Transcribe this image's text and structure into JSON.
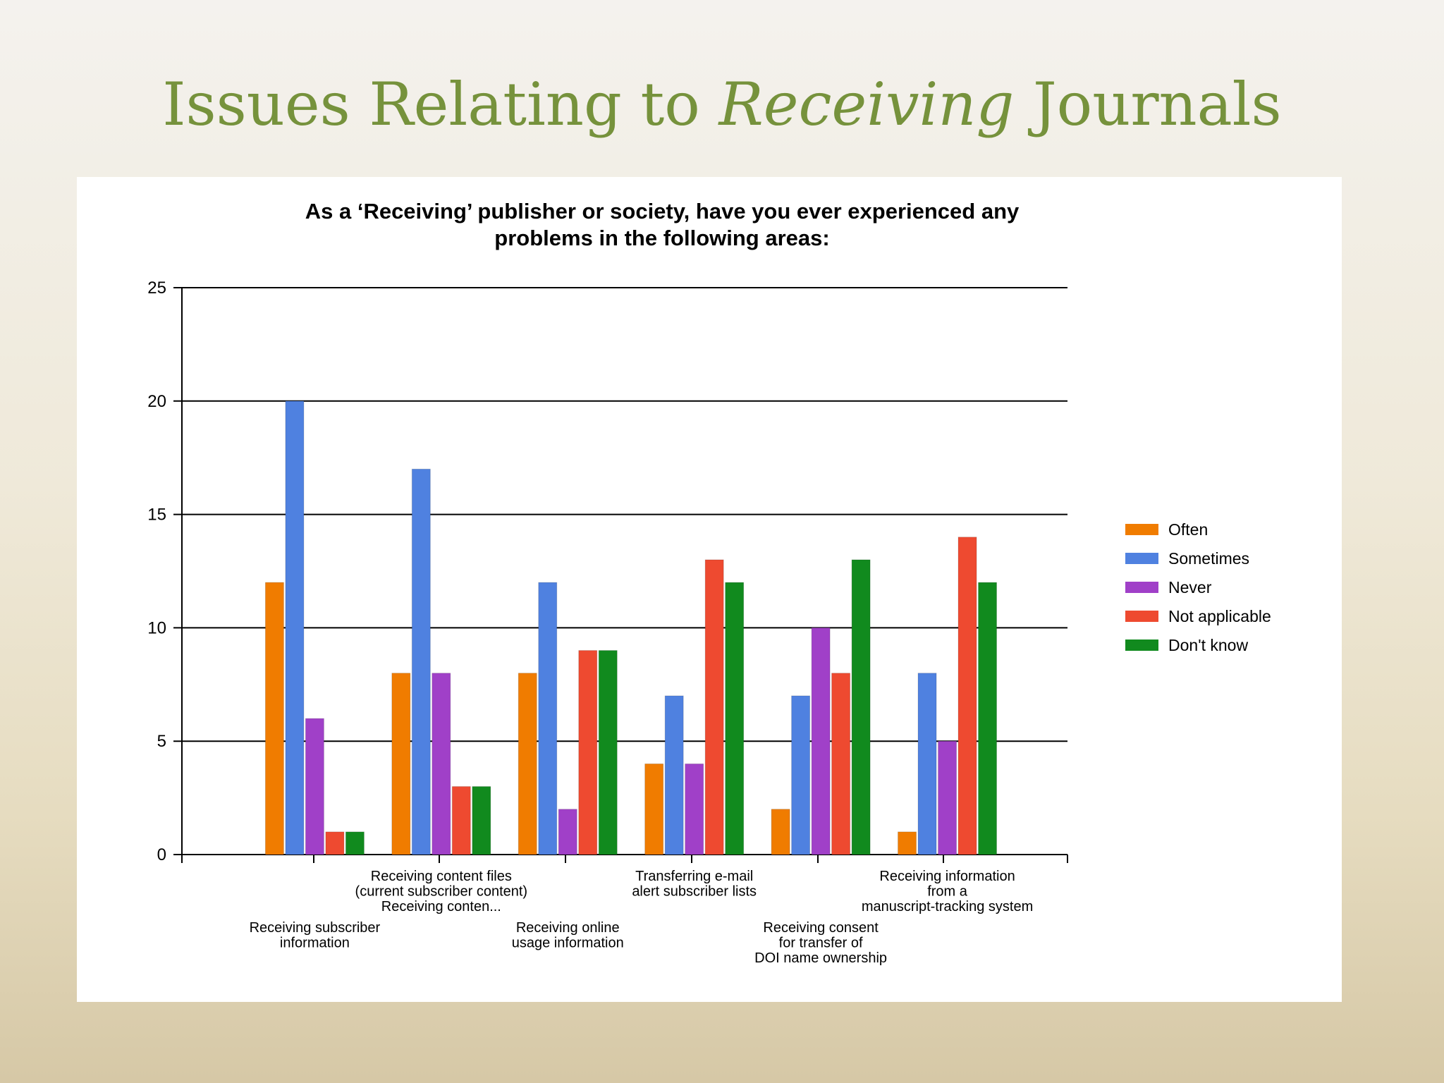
{
  "slide": {
    "title_before": "Issues Relating to ",
    "title_emphasis": "Receiving",
    "title_after": " Journals"
  },
  "chart_data": {
    "type": "bar",
    "title": "As a ‘Receiving’ publisher or society, have you ever experienced any problems in the following areas:",
    "title_lines": [
      "As a ‘Receiving’ publisher or society, have you ever experienced any",
      "problems in the following areas:"
    ],
    "ylim": [
      0,
      25
    ],
    "yticks": [
      0,
      5,
      10,
      15,
      20,
      25
    ],
    "grid": true,
    "legend_position": "right",
    "categories": [
      "Receiving subscriber information",
      "Receiving content files (current subscriber content) Receiving conten...",
      "Receiving online usage information",
      "Transferring e-mail alert subscriber lists",
      "Receiving consent for transfer of DOI name ownership",
      "Receiving information from a manuscript-tracking system"
    ],
    "category_label_lines": [
      [
        "Receiving subscriber",
        "information"
      ],
      [
        "Receiving content files",
        "(current subscriber content)",
        "Receiving conten..."
      ],
      [
        "Receiving online",
        "usage information"
      ],
      [
        "Transferring e-mail",
        "alert subscriber lists"
      ],
      [
        "Receiving consent",
        "for transfer of",
        "DOI name ownership"
      ],
      [
        "Receiving information",
        "from a",
        "manuscript-tracking system"
      ]
    ],
    "series": [
      {
        "name": "Often",
        "color": "#f07c00",
        "values": [
          12,
          8,
          8,
          4,
          2,
          1
        ]
      },
      {
        "name": "Sometimes",
        "color": "#4f81e0",
        "values": [
          20,
          17,
          12,
          7,
          7,
          8
        ]
      },
      {
        "name": "Never",
        "color": "#a040c8",
        "values": [
          6,
          8,
          2,
          4,
          10,
          5
        ]
      },
      {
        "name": "Not applicable",
        "color": "#ee4a30",
        "values": [
          1,
          3,
          9,
          13,
          8,
          14
        ]
      },
      {
        "name": "Don't know",
        "color": "#118a1e",
        "values": [
          1,
          3,
          9,
          12,
          13,
          12
        ]
      }
    ]
  }
}
